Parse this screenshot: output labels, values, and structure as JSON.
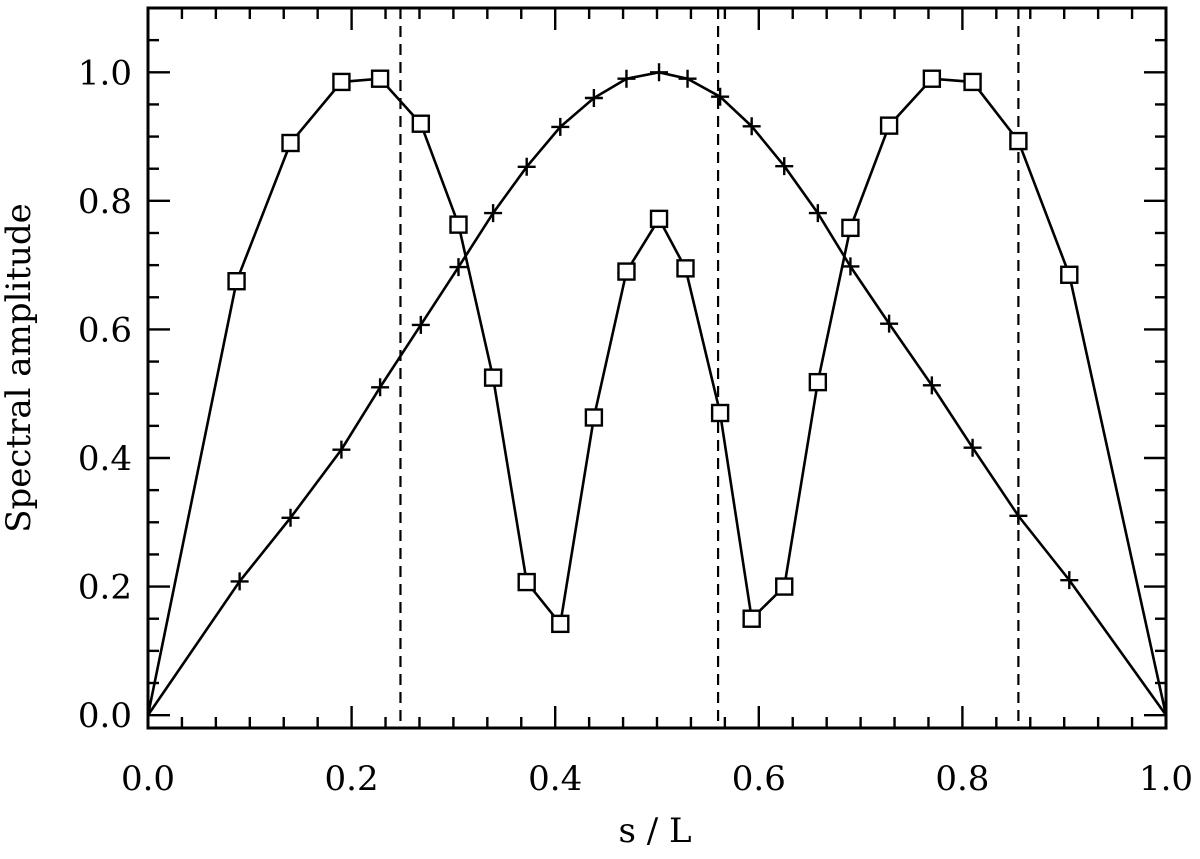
{
  "chart_data": {
    "type": "line",
    "title": "",
    "xlabel": "s / L",
    "ylabel": "Spectral amplitude",
    "xlim": [
      0.0,
      1.0
    ],
    "ylim": [
      -0.02,
      1.1
    ],
    "xticks": [
      "0.0",
      "0.2",
      "0.4",
      "0.6",
      "0.8",
      "1.0"
    ],
    "yticks": [
      "0.0",
      "0.2",
      "0.4",
      "0.6",
      "0.8",
      "1.0"
    ],
    "grid": false,
    "vlines": [
      0.248,
      0.56,
      0.855
    ],
    "series": [
      {
        "marker": "square",
        "x": [
          0.0,
          0.087,
          0.14,
          0.19,
          0.228,
          0.268,
          0.305,
          0.339,
          0.372,
          0.405,
          0.438,
          0.47,
          0.502,
          0.528,
          0.562,
          0.593,
          0.625,
          0.658,
          0.69,
          0.728,
          0.77,
          0.81,
          0.855,
          0.905,
          1.0
        ],
        "y": [
          0.0,
          0.675,
          0.89,
          0.985,
          0.99,
          0.92,
          0.763,
          0.525,
          0.207,
          0.142,
          0.463,
          0.69,
          0.772,
          0.695,
          0.47,
          0.15,
          0.2,
          0.518,
          0.758,
          0.917,
          0.99,
          0.985,
          0.893,
          0.685,
          0.0
        ]
      },
      {
        "marker": "plus",
        "x": [
          0.0,
          0.09,
          0.14,
          0.19,
          0.228,
          0.268,
          0.305,
          0.339,
          0.372,
          0.405,
          0.438,
          0.47,
          0.502,
          0.53,
          0.562,
          0.593,
          0.625,
          0.658,
          0.69,
          0.728,
          0.77,
          0.81,
          0.855,
          0.905,
          1.0
        ],
        "y": [
          0.0,
          0.208,
          0.307,
          0.413,
          0.51,
          0.607,
          0.697,
          0.781,
          0.853,
          0.915,
          0.96,
          0.99,
          1.0,
          0.99,
          0.962,
          0.916,
          0.854,
          0.781,
          0.698,
          0.609,
          0.513,
          0.416,
          0.31,
          0.21,
          0.0
        ]
      }
    ]
  }
}
